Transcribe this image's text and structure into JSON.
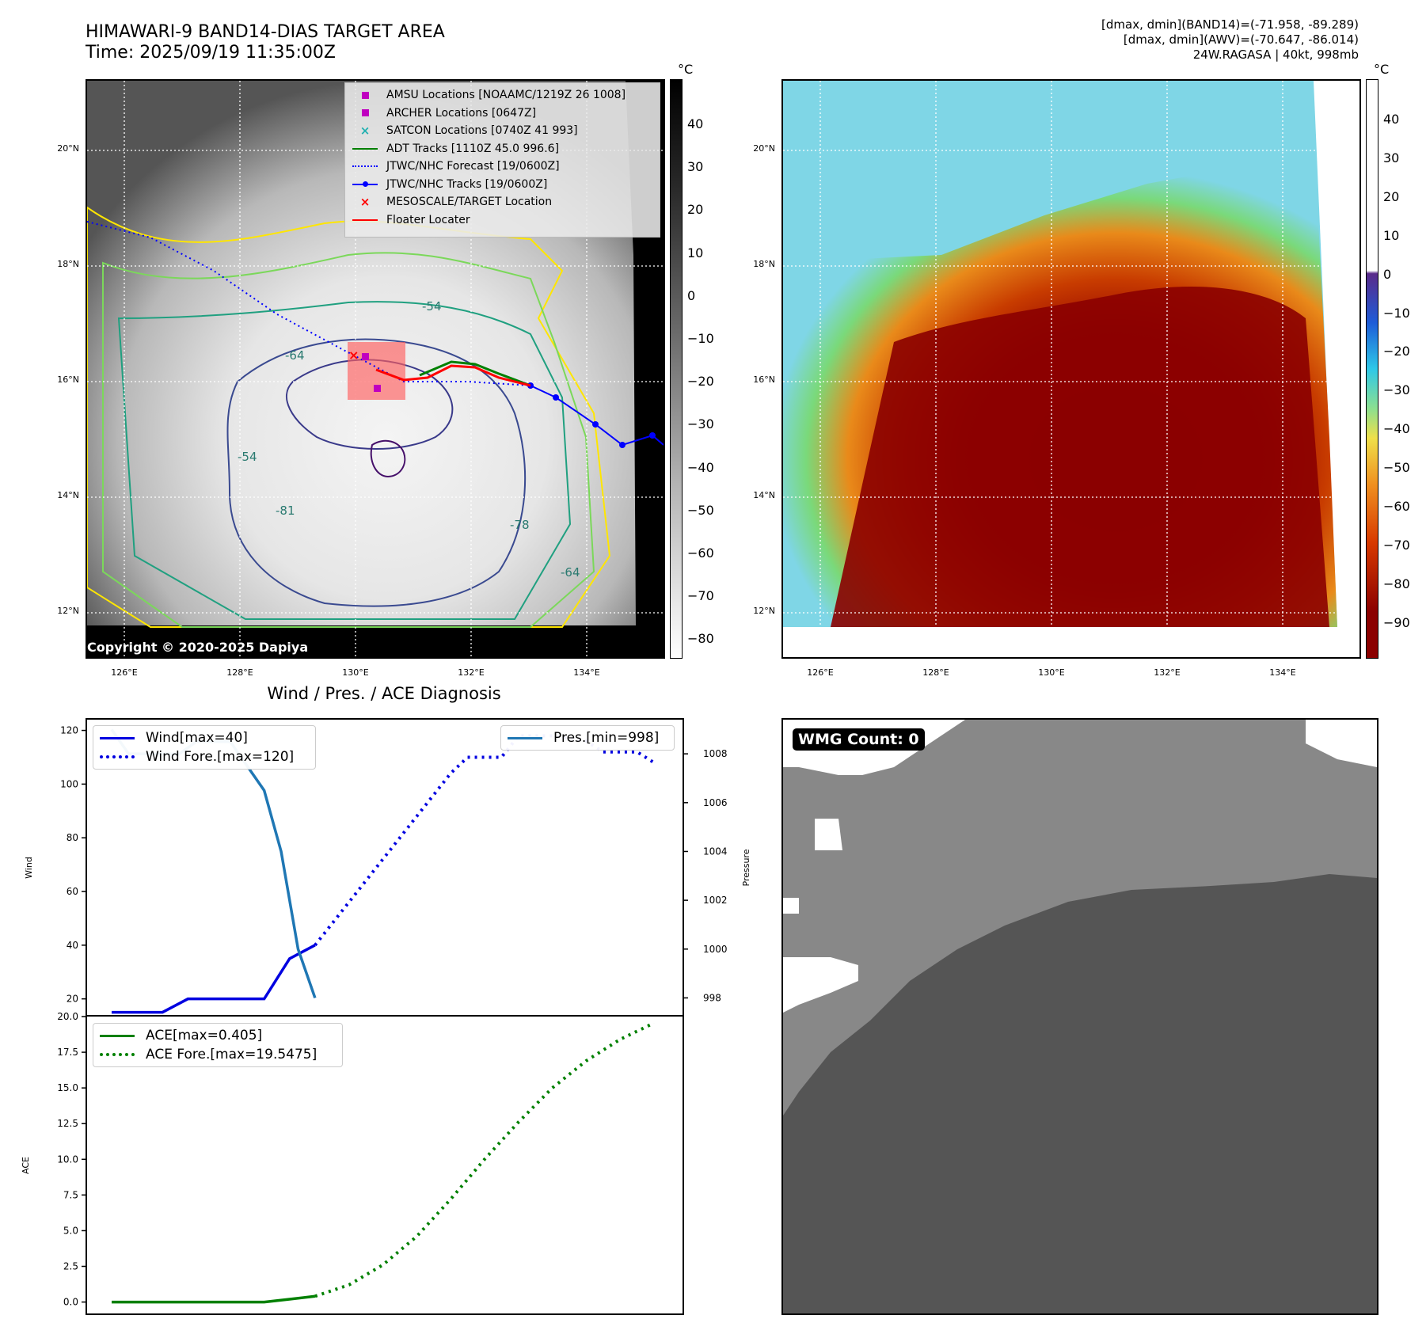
{
  "header": {
    "title_line1": "HIMAWARI-9 BAND14-DIAS TARGET AREA",
    "title_line2": "Time: 2025/09/19 11:35:00Z",
    "right_line1": "[dmax, dmin](BAND14)=(-71.958, -89.289)",
    "right_line2": "[dmax, dmin](AWV)=(-70.647, -86.014)",
    "right_line3": "24W.RAGASA | 40kt, 998mb"
  },
  "map_axes": {
    "lat_ticks": [
      "20°N",
      "18°N",
      "16°N",
      "14°N",
      "12°N"
    ],
    "lon_ticks": [
      "126°E",
      "128°E",
      "130°E",
      "132°E",
      "134°E"
    ]
  },
  "map_legend": [
    {
      "label": "AMSU Locations [NOAAMC/1219Z 26 1008]",
      "color": "#c000c0",
      "symbol": "square"
    },
    {
      "label": "ARCHER Locations [0647Z]",
      "color": "#c000c0",
      "symbol": "square"
    },
    {
      "label": "SATCON Locations [0740Z 41 993]",
      "color": "#20b0b0",
      "symbol": "x"
    },
    {
      "label": "ADT Tracks [1110Z 45.0 996.6]",
      "color": "#008000",
      "symbol": "line"
    },
    {
      "label": "JTWC/NHC Forecast [19/0600Z]",
      "color": "#0000ff",
      "symbol": "dotted"
    },
    {
      "label": "JTWC/NHC Tracks [19/0600Z]",
      "color": "#0000ff",
      "symbol": "line-dot"
    },
    {
      "label": "MESOSCALE/TARGET Location",
      "color": "#ff0000",
      "symbol": "x"
    },
    {
      "label": "Floater Locater",
      "color": "#ff0000",
      "symbol": "line"
    }
  ],
  "map_contour_labels": [
    "-54",
    "-64",
    "-78",
    "-81",
    "-64",
    "-54"
  ],
  "copyright": "Copyright © 2020-2025 Dapiya",
  "colorbar_gray": {
    "unit": "°C",
    "ticks": [
      "40",
      "30",
      "20",
      "10",
      "0",
      "−10",
      "−20",
      "−30",
      "−40",
      "−50",
      "−60",
      "−70",
      "−80"
    ]
  },
  "colorbar_color": {
    "unit": "°C",
    "ticks": [
      "40",
      "30",
      "20",
      "10",
      "0",
      "−10",
      "−20",
      "−30",
      "−40",
      "−50",
      "−60",
      "−70",
      "−80",
      "−90"
    ]
  },
  "chart_data": [
    {
      "type": "line",
      "title": "Wind / Pres. / ACE Diagnosis",
      "ylabel": "Wind",
      "ylabel_right": "Pressure",
      "ylim": [
        14,
        124
      ],
      "ylim_right": [
        997.3,
        1009.4
      ],
      "yticks": [
        "120",
        "100",
        "80",
        "60",
        "40",
        "20"
      ],
      "yticks_right": [
        "1008",
        "1006",
        "1004",
        "1002",
        "1000",
        "998"
      ],
      "series": [
        {
          "name": "Wind[max=40]",
          "axis": "left",
          "color": "#0000e0",
          "style": "solid",
          "x": [
            0,
            1.5,
            3,
            4.5,
            6,
            7.5,
            9,
            10.5,
            12
          ],
          "values": [
            15,
            15,
            15,
            20,
            20,
            20,
            20,
            35,
            40
          ]
        },
        {
          "name": "Wind Fore.[max=120]",
          "axis": "left",
          "color": "#0000e0",
          "style": "dotted",
          "x": [
            12,
            13,
            14,
            15,
            16,
            17,
            18,
            19,
            20,
            21,
            22,
            23,
            24,
            25,
            26,
            27,
            28,
            29,
            30,
            31,
            32
          ],
          "values": [
            40,
            48,
            56,
            64,
            72,
            80,
            88,
            96,
            104,
            110,
            110,
            110,
            118,
            118,
            118,
            117,
            116,
            112,
            112,
            112,
            108
          ]
        },
        {
          "name": "Pres.[min=998]",
          "axis": "right",
          "color": "#1f77b4",
          "style": "solid",
          "x": [
            0,
            1,
            2,
            3,
            4,
            5,
            6,
            7,
            8,
            9,
            10,
            11,
            12
          ],
          "values": [
            1009,
            1008,
            1008,
            1008,
            1008,
            1008.5,
            1008.5,
            1008.5,
            1007.5,
            1006.5,
            1004,
            1000,
            998
          ]
        }
      ]
    },
    {
      "type": "line",
      "ylabel": "ACE",
      "ylim": [
        -0.8,
        20.0
      ],
      "yticks": [
        "20.0",
        "17.5",
        "15.0",
        "12.5",
        "10.0",
        "7.5",
        "5.0",
        "2.5",
        "0.0"
      ],
      "series": [
        {
          "name": "ACE[max=0.405]",
          "color": "#008000",
          "style": "solid",
          "x": [
            0,
            3,
            6,
            9,
            10.5,
            12
          ],
          "values": [
            0,
            0,
            0,
            0,
            0.2,
            0.405
          ]
        },
        {
          "name": "ACE Fore.[max=19.5475]",
          "color": "#008000",
          "style": "dotted",
          "x": [
            12,
            14,
            16,
            18,
            20,
            22,
            24,
            26,
            28,
            30,
            32
          ],
          "values": [
            0.405,
            1.2,
            2.6,
            4.6,
            7.2,
            10.0,
            12.6,
            15.0,
            16.9,
            18.4,
            19.5475
          ]
        }
      ]
    }
  ],
  "wmg": {
    "label": "WMG Count: 0"
  }
}
